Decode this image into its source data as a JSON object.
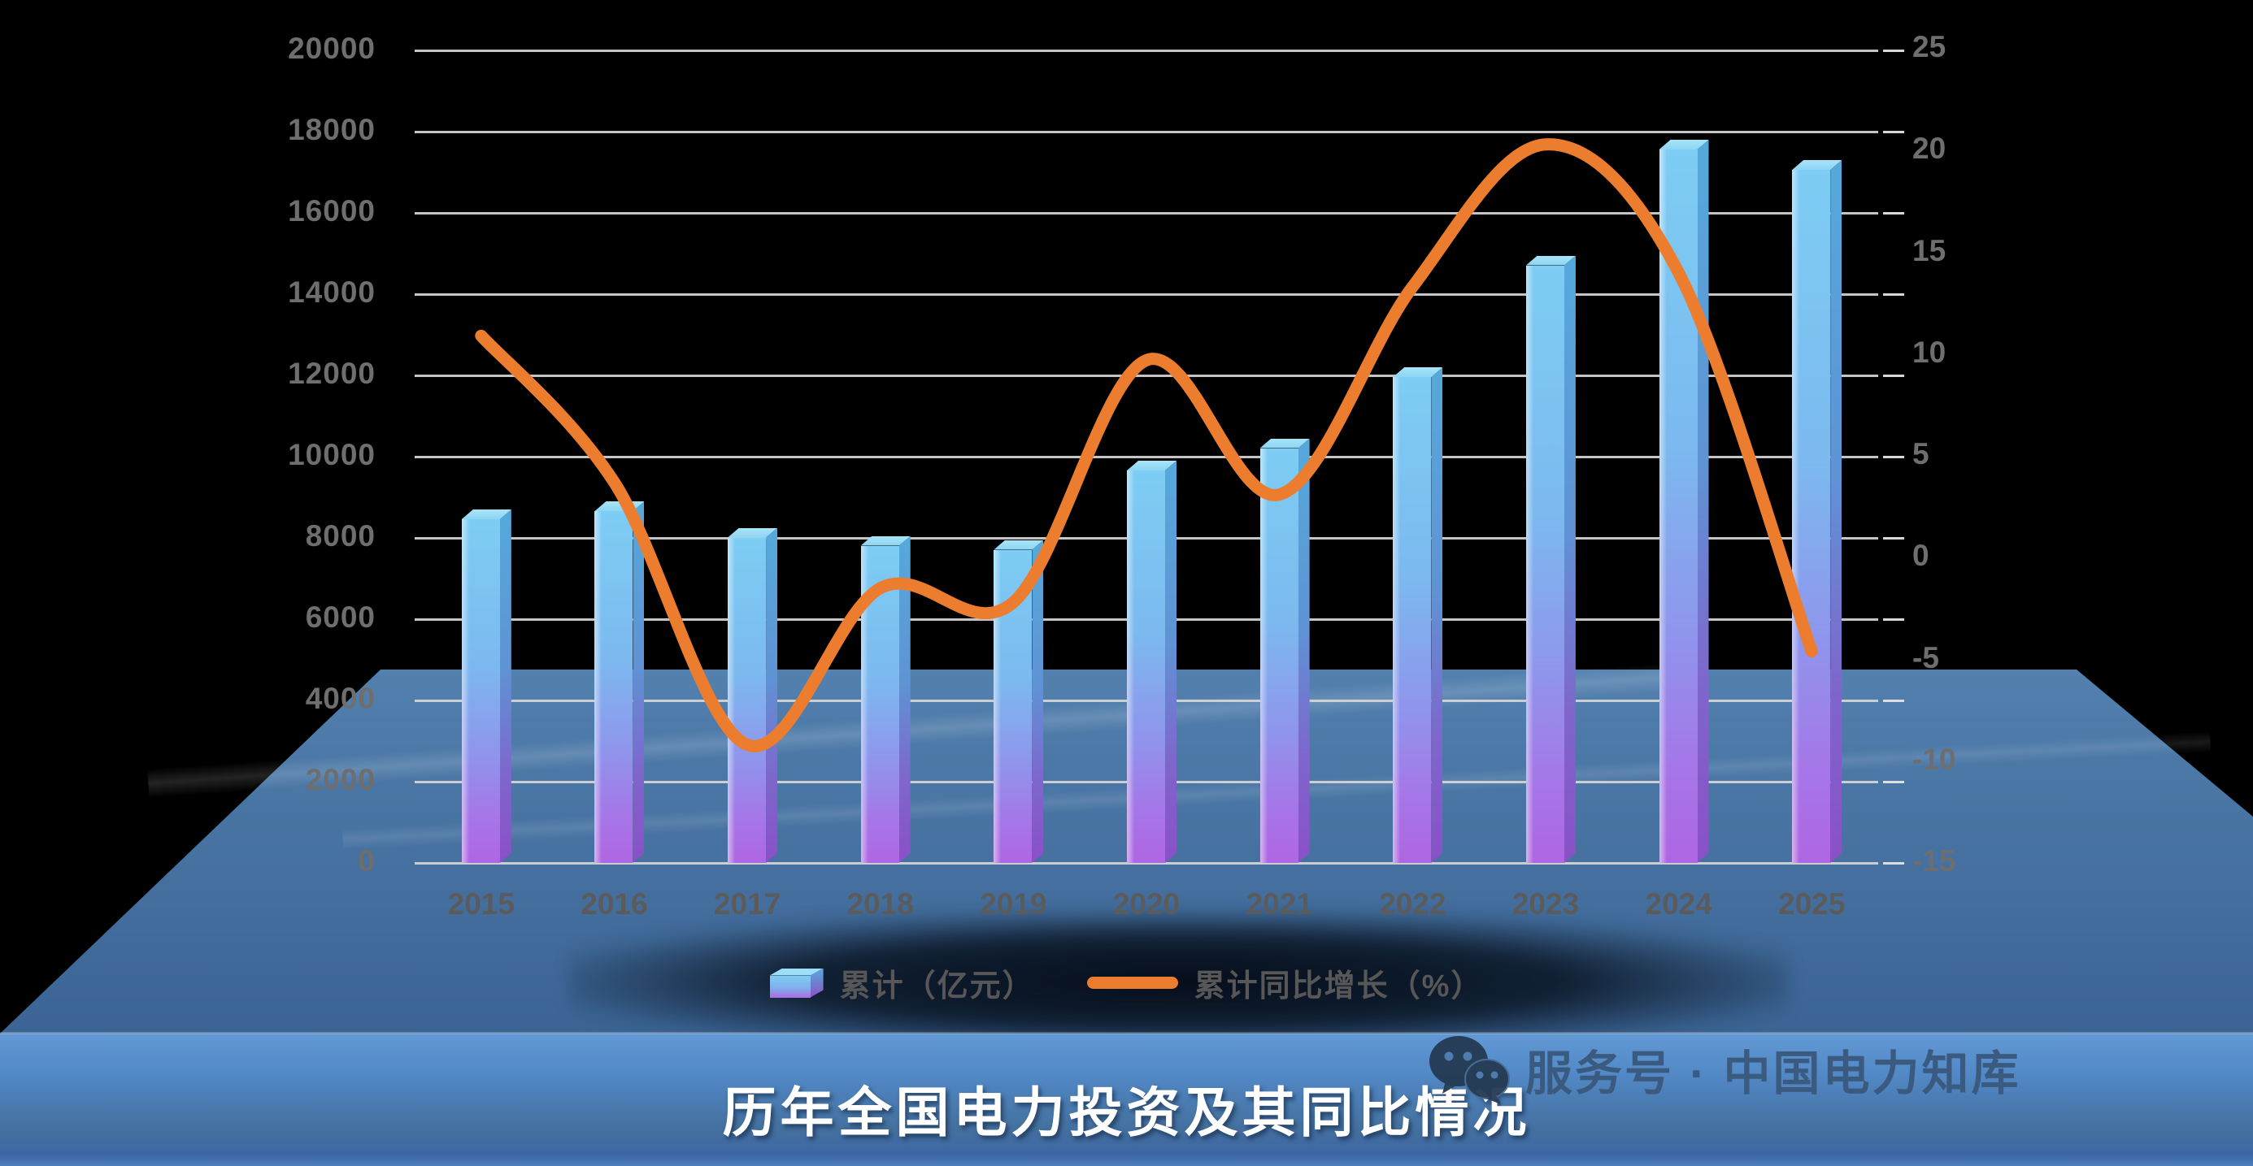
{
  "chart_data": {
    "type": "combo",
    "title": "历年全国电力投资及其同比情况",
    "categories": [
      "2015",
      "2016",
      "2017",
      "2018",
      "2019",
      "2020",
      "2021",
      "2022",
      "2023",
      "2024",
      "2025"
    ],
    "series": [
      {
        "name": "累计（亿元）",
        "type": "bar",
        "axis": "left",
        "values": [
          8700,
          8900,
          8250,
          8050,
          7950,
          9900,
          10450,
          12200,
          14950,
          17800,
          17300
        ]
      },
      {
        "name": "累计同比增长（%）",
        "type": "line",
        "axis": "right",
        "values": [
          10.9,
          3.7,
          -9.2,
          -1.5,
          -2.2,
          9.7,
          3.1,
          13.3,
          20.3,
          14.0,
          -4.6
        ]
      }
    ],
    "left_axis": {
      "min": 0,
      "max": 20000,
      "step": 2000,
      "tick_labels": [
        "20000",
        "18000",
        "16000",
        "14000",
        "12000",
        "10000",
        "8000",
        "6000",
        "4000",
        "2000",
        "0"
      ]
    },
    "right_axis": {
      "min": -15,
      "max": 25,
      "step": 5,
      "tick_labels": [
        "25",
        "20",
        "15",
        "10",
        "5",
        "0",
        "-5",
        "-10",
        "-15"
      ]
    },
    "grid": "horizontal",
    "legend_position": "bottom"
  },
  "watermark": {
    "label": "服务号 · 中国电力知库",
    "icon": "wechat-icon"
  },
  "colors": {
    "background": "#000000",
    "bar_top": "#7DCDF4",
    "bar_bottom": "#AF66E2",
    "bar_cap": "#9EDFF7",
    "bar_side_top": "#55A9DB",
    "bar_side_bottom": "#8A50C6",
    "line": "#EC7D2E",
    "gridline": "#D6D6D6",
    "axis_text": "#6E6E6E",
    "platform_light": "#A7D7F2",
    "platform_dark": "#3B6494",
    "banner_top": "#6199D5",
    "banner_bottom": "#3D67A5",
    "title_text": "#FFFFFF",
    "watermark_text": "#3A587C"
  }
}
